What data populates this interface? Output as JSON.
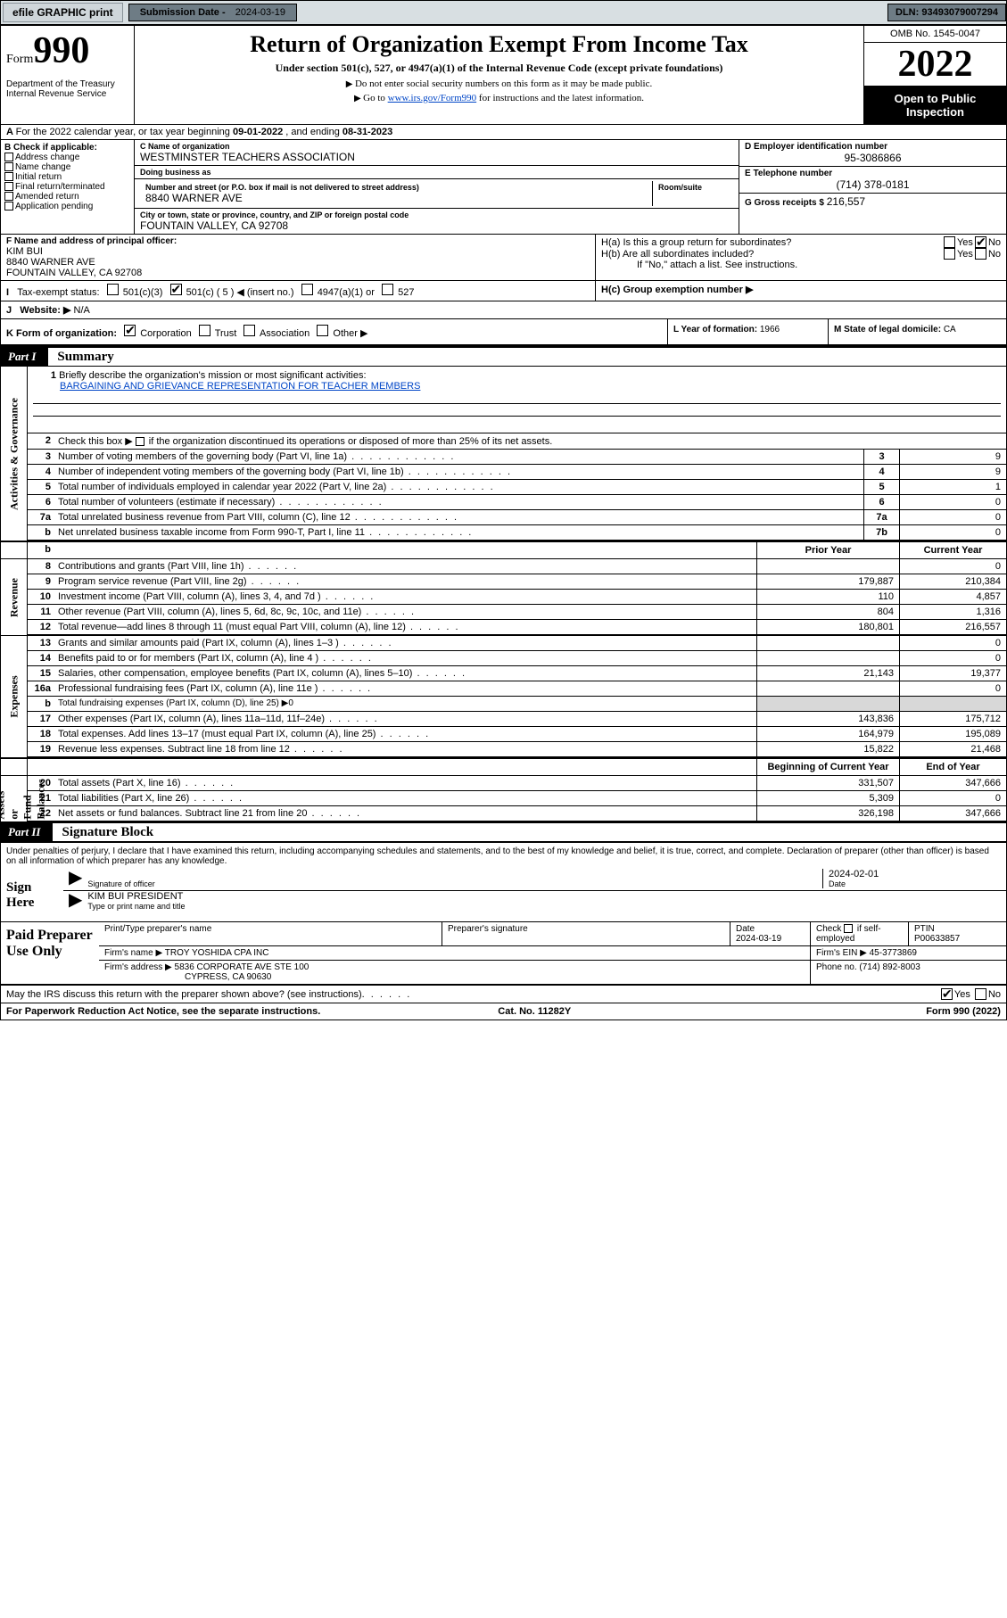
{
  "topbar": {
    "efile": "efile GRAPHIC print",
    "sub_label": "Submission Date - ",
    "sub_value": "2024-03-19",
    "dln_label": "DLN: ",
    "dln_value": "93493079007294"
  },
  "header": {
    "form_label": "Form",
    "form_num": "990",
    "dept": "Department of the Treasury\nInternal Revenue Service",
    "title": "Return of Organization Exempt From Income Tax",
    "sub1": "Under section 501(c), 527, or 4947(a)(1) of the Internal Revenue Code (except private foundations)",
    "sub2": "Do not enter social security numbers on this form as it may be made public.",
    "sub3_prefix": "Go to ",
    "sub3_link": "www.irs.gov/Form990",
    "sub3_suffix": " for instructions and the latest information.",
    "omb": "OMB No. 1545-0047",
    "year": "2022",
    "open": "Open to Public Inspection"
  },
  "A": {
    "text": "For the 2022 calendar year, or tax year beginning ",
    "begin": "09-01-2022",
    "mid": " , and ending ",
    "end": "08-31-2023"
  },
  "B": {
    "hdr": "B Check if applicable:",
    "items": [
      "Address change",
      "Name change",
      "Initial return",
      "Final return/terminated",
      "Amended return",
      "Application pending"
    ]
  },
  "C": {
    "name_lbl": "C Name of organization",
    "name": "WESTMINSTER TEACHERS ASSOCIATION",
    "dba_lbl": "Doing business as",
    "dba": "",
    "addr_lbl": "Number and street (or P.O. box if mail is not delivered to street address)",
    "addr": "8840 WARNER AVE",
    "room_lbl": "Room/suite",
    "city_lbl": "City or town, state or province, country, and ZIP or foreign postal code",
    "city": "FOUNTAIN VALLEY, CA  92708"
  },
  "D": {
    "lbl": "D Employer identification number",
    "val": "95-3086866"
  },
  "E": {
    "lbl": "E Telephone number",
    "val": "(714) 378-0181"
  },
  "G": {
    "lbl": "G Gross receipts $ ",
    "val": "216,557"
  },
  "F": {
    "lbl": "F  Name and address of principal officer:",
    "name": "KIM BUI",
    "addr1": "8840 WARNER AVE",
    "addr2": "FOUNTAIN VALLEY, CA  92708"
  },
  "H": {
    "a": "H(a)  Is this a group return for subordinates?",
    "b": "H(b)  Are all subordinates included?",
    "bnote": "If \"No,\" attach a list. See instructions.",
    "c": "H(c)  Group exemption number ▶",
    "yes": "Yes",
    "no": "No"
  },
  "I": {
    "lbl": "Tax-exempt status:",
    "c3": "501(c)(3)",
    "c": "501(c) ( 5 ) ◀ (insert no.)",
    "a4947": "4947(a)(1) or",
    "c527": "527"
  },
  "J": {
    "lbl": "Website: ▶",
    "val": "N/A"
  },
  "K": {
    "lbl": "K Form of organization:",
    "corp": "Corporation",
    "trust": "Trust",
    "assoc": "Association",
    "other": "Other ▶"
  },
  "L": {
    "lbl": "L Year of formation: ",
    "val": "1966"
  },
  "M": {
    "lbl": "M State of legal domicile: ",
    "val": "CA"
  },
  "part1": {
    "tag": "Part I",
    "title": "Summary"
  },
  "summary": {
    "l1": "Briefly describe the organization's mission or most significant activities:",
    "mission": "BARGAINING AND GRIEVANCE REPRESENTATION FOR TEACHER MEMBERS",
    "l2": "Check this box ▶      if the organization discontinued its operations or disposed of more than 25% of its net assets.",
    "rows_nums": [
      {
        "n": "3",
        "t": "Number of voting members of the governing body (Part VI, line 1a)",
        "b": "3",
        "v": "9"
      },
      {
        "n": "4",
        "t": "Number of independent voting members of the governing body (Part VI, line 1b)",
        "b": "4",
        "v": "9"
      },
      {
        "n": "5",
        "t": "Total number of individuals employed in calendar year 2022 (Part V, line 2a)",
        "b": "5",
        "v": "1"
      },
      {
        "n": "6",
        "t": "Total number of volunteers (estimate if necessary)",
        "b": "6",
        "v": "0"
      },
      {
        "n": "7a",
        "t": "Total unrelated business revenue from Part VIII, column (C), line 12",
        "b": "7a",
        "v": "0"
      },
      {
        "n": "b",
        "t": "Net unrelated business taxable income from Form 990-T, Part I, line 11",
        "b": "7b",
        "v": "0"
      }
    ],
    "hdr_b": "b",
    "col_prior": "Prior Year",
    "col_curr": "Current Year",
    "revenue": [
      {
        "n": "8",
        "t": "Contributions and grants (Part VIII, line 1h)",
        "p": "",
        "c": "0"
      },
      {
        "n": "9",
        "t": "Program service revenue (Part VIII, line 2g)",
        "p": "179,887",
        "c": "210,384"
      },
      {
        "n": "10",
        "t": "Investment income (Part VIII, column (A), lines 3, 4, and 7d )",
        "p": "110",
        "c": "4,857"
      },
      {
        "n": "11",
        "t": "Other revenue (Part VIII, column (A), lines 5, 6d, 8c, 9c, 10c, and 11e)",
        "p": "804",
        "c": "1,316"
      },
      {
        "n": "12",
        "t": "Total revenue—add lines 8 through 11 (must equal Part VIII, column (A), line 12)",
        "p": "180,801",
        "c": "216,557"
      }
    ],
    "expenses": [
      {
        "n": "13",
        "t": "Grants and similar amounts paid (Part IX, column (A), lines 1–3 )",
        "p": "",
        "c": "0"
      },
      {
        "n": "14",
        "t": "Benefits paid to or for members (Part IX, column (A), line 4 )",
        "p": "",
        "c": "0"
      },
      {
        "n": "15",
        "t": "Salaries, other compensation, employee benefits (Part IX, column (A), lines 5–10)",
        "p": "21,143",
        "c": "19,377"
      },
      {
        "n": "16a",
        "t": "Professional fundraising fees (Part IX, column (A), line 11e )",
        "p": "",
        "c": "0"
      },
      {
        "n": "b",
        "t": "Total fundraising expenses (Part IX, column (D), line 25) ▶0",
        "p": "",
        "c": "",
        "nodata": true
      },
      {
        "n": "17",
        "t": "Other expenses (Part IX, column (A), lines 11a–11d, 11f–24e)",
        "p": "143,836",
        "c": "175,712"
      },
      {
        "n": "18",
        "t": "Total expenses. Add lines 13–17 (must equal Part IX, column (A), line 25)",
        "p": "164,979",
        "c": "195,089"
      },
      {
        "n": "19",
        "t": "Revenue less expenses. Subtract line 18 from line 12",
        "p": "15,822",
        "c": "21,468"
      }
    ],
    "na_hdr1": "Beginning of Current Year",
    "na_hdr2": "End of Year",
    "netassets": [
      {
        "n": "20",
        "t": "Total assets (Part X, line 16)",
        "p": "331,507",
        "c": "347,666"
      },
      {
        "n": "21",
        "t": "Total liabilities (Part X, line 26)",
        "p": "5,309",
        "c": "0"
      },
      {
        "n": "22",
        "t": "Net assets or fund balances. Subtract line 21 from line 20",
        "p": "326,198",
        "c": "347,666"
      }
    ]
  },
  "vlabels": {
    "ag": "Activities & Governance",
    "rev": "Revenue",
    "exp": "Expenses",
    "na": "Net Assets or\nFund Balances"
  },
  "part2": {
    "tag": "Part II",
    "title": "Signature Block"
  },
  "sig": {
    "decl": "Under penalties of perjury, I declare that I have examined this return, including accompanying schedules and statements, and to the best of my knowledge and belief, it is true, correct, and complete. Declaration of preparer (other than officer) is based on all information of which preparer has any knowledge.",
    "sign_here": "Sign Here",
    "sig_lbl": "Signature of officer",
    "date_lbl": "Date",
    "date_val": "2024-02-01",
    "name": "KIM BUI PRESIDENT",
    "name_lbl": "Type or print name and title"
  },
  "prep": {
    "title": "Paid Preparer Use Only",
    "h1": "Print/Type preparer's name",
    "h2": "Preparer's signature",
    "h3": "Date",
    "h4": "Check       if self-employed",
    "h5": "PTIN",
    "date": "2024-03-19",
    "ptin": "P00633857",
    "firm_lbl": "Firm's name     ▶ ",
    "firm": "TROY YOSHIDA CPA INC",
    "ein_lbl": "Firm's EIN ▶ ",
    "ein": "45-3773869",
    "addr_lbl": "Firm's address ▶ ",
    "addr1": "5836 CORPORATE AVE STE 100",
    "addr2": "CYPRESS, CA  90630",
    "ph_lbl": "Phone no. ",
    "ph": "(714) 892-8003"
  },
  "discuss": {
    "t": "May the IRS discuss this return with the preparer shown above? (see instructions)",
    "yes": "Yes",
    "no": "No"
  },
  "footer": {
    "l": "For Paperwork Reduction Act Notice, see the separate instructions.",
    "m": "Cat. No. 11282Y",
    "r": "Form 990 (2022)"
  }
}
